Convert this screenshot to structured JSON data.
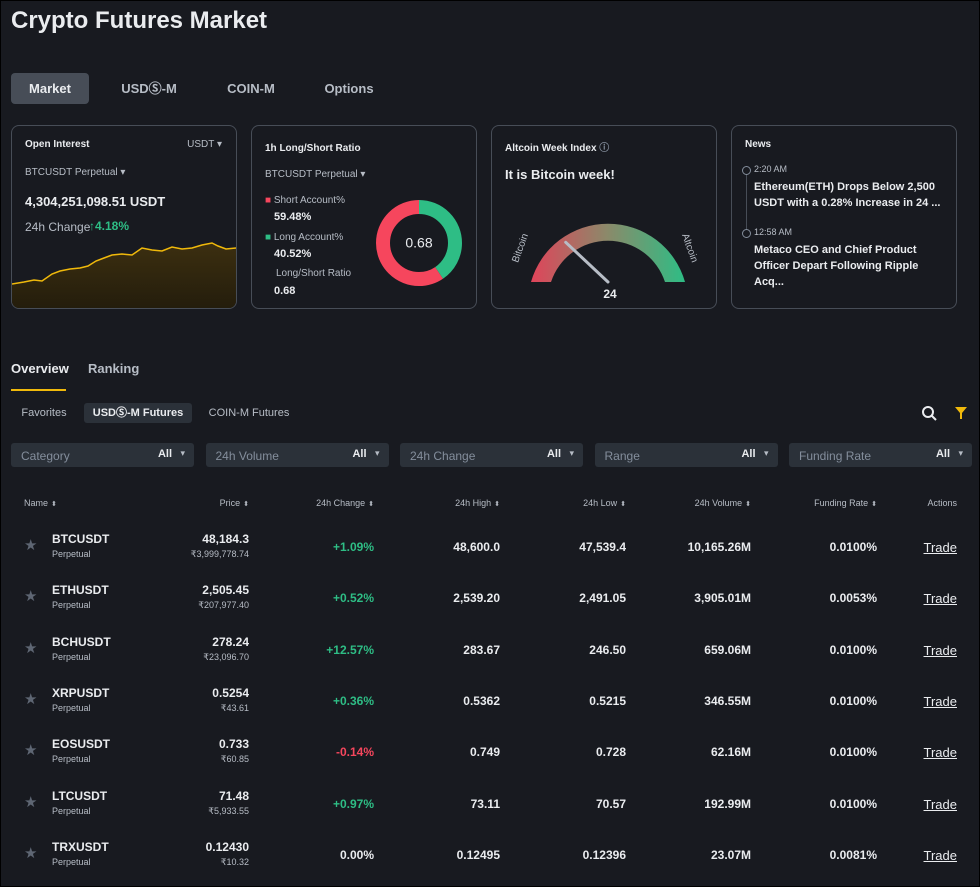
{
  "header": {
    "title": "Crypto Futures Market"
  },
  "market_tabs": [
    "Market",
    "USDⓈ-M",
    "COIN-M",
    "Options"
  ],
  "open_interest": {
    "title": "Open Interest",
    "unit": "USDT",
    "symbol": "BTCUSDT Perpetual",
    "value": "4,304,251,098.51 USDT",
    "change_label": "24h Change",
    "change": "4.18%"
  },
  "long_short": {
    "title": "1h Long/Short Ratio",
    "symbol": "BTCUSDT Perpetual",
    "short_label": "Short Account%",
    "short": "59.48%",
    "long_label": "Long Account%",
    "long": "40.52%",
    "ratio_label": "Long/Short Ratio",
    "ratio": "0.68"
  },
  "altcoin_index": {
    "title": "Altcoin Week Index",
    "headline": "It is Bitcoin week!",
    "left_label": "Bitcoin",
    "right_label": "Altcoin",
    "value": 24
  },
  "news": {
    "title": "News",
    "items": [
      {
        "time": "2:20 AM",
        "text": "Ethereum(ETH) Drops Below 2,500 USDT with a 0.28% Increase in 24 ..."
      },
      {
        "time": "12:58 AM",
        "text": "Metaco CEO and Chief Product Officer Depart Following Ripple Acq..."
      }
    ]
  },
  "section_tabs": [
    "Overview",
    "Ranking"
  ],
  "sub_tabs": [
    "Favorites",
    "USDⓈ-M Futures",
    "COIN-M Futures"
  ],
  "filters": [
    {
      "label": "Category",
      "value": "All"
    },
    {
      "label": "24h Volume",
      "value": "All"
    },
    {
      "label": "24h Change",
      "value": "All"
    },
    {
      "label": "Range",
      "value": "All"
    },
    {
      "label": "Funding Rate",
      "value": "All"
    }
  ],
  "table": {
    "columns": [
      "Name",
      "Price",
      "24h Change",
      "24h High",
      "24h Low",
      "24h Volume",
      "Funding Rate",
      "Actions"
    ],
    "rows": [
      {
        "symbol": "BTCUSDT",
        "type": "Perpetual",
        "price": "48,184.3",
        "price_local": "₹3,999,778.74",
        "change": "+1.09%",
        "high": "48,600.0",
        "low": "47,539.4",
        "volume": "10,165.26M",
        "funding": "0.0100%",
        "action": "Trade"
      },
      {
        "symbol": "ETHUSDT",
        "type": "Perpetual",
        "price": "2,505.45",
        "price_local": "₹207,977.40",
        "change": "+0.52%",
        "high": "2,539.20",
        "low": "2,491.05",
        "volume": "3,905.01M",
        "funding": "0.0053%",
        "action": "Trade"
      },
      {
        "symbol": "BCHUSDT",
        "type": "Perpetual",
        "price": "278.24",
        "price_local": "₹23,096.70",
        "change": "+12.57%",
        "high": "283.67",
        "low": "246.50",
        "volume": "659.06M",
        "funding": "0.0100%",
        "action": "Trade"
      },
      {
        "symbol": "XRPUSDT",
        "type": "Perpetual",
        "price": "0.5254",
        "price_local": "₹43.61",
        "change": "+0.36%",
        "high": "0.5362",
        "low": "0.5215",
        "volume": "346.55M",
        "funding": "0.0100%",
        "action": "Trade"
      },
      {
        "symbol": "EOSUSDT",
        "type": "Perpetual",
        "price": "0.733",
        "price_local": "₹60.85",
        "change": "-0.14%",
        "high": "0.749",
        "low": "0.728",
        "volume": "62.16M",
        "funding": "0.0100%",
        "action": "Trade"
      },
      {
        "symbol": "LTCUSDT",
        "type": "Perpetual",
        "price": "71.48",
        "price_local": "₹5,933.55",
        "change": "+0.97%",
        "high": "73.11",
        "low": "70.57",
        "volume": "192.99M",
        "funding": "0.0100%",
        "action": "Trade"
      },
      {
        "symbol": "TRXUSDT",
        "type": "Perpetual",
        "price": "0.12430",
        "price_local": "₹10.32",
        "change": "0.00%",
        "high": "0.12495",
        "low": "0.12396",
        "volume": "23.07M",
        "funding": "0.0081%",
        "action": "Trade"
      }
    ]
  }
}
